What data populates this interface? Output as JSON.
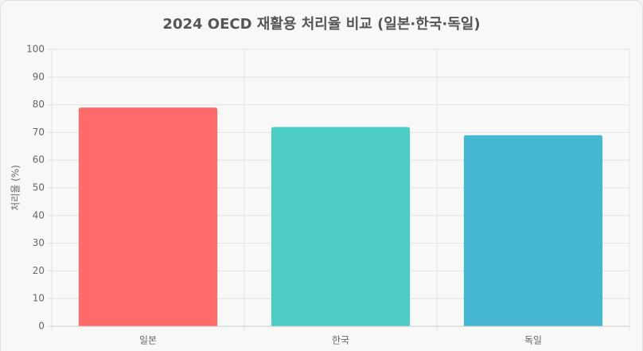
{
  "chart_data": {
    "type": "bar",
    "title": "2024 OECD 재활용 처리율 비교 (일본·한국·독일)",
    "y_label": "처리율 (%)",
    "categories": [
      "일본",
      "한국",
      "독일"
    ],
    "values": [
      79,
      72,
      69
    ],
    "colors": [
      "#ff6b6b",
      "#4ecdc4",
      "#45b7d1"
    ],
    "ylim": [
      0,
      100
    ],
    "yticks": [
      0,
      10,
      20,
      30,
      40,
      50,
      60,
      70,
      80,
      90,
      100
    ],
    "grid": true
  }
}
